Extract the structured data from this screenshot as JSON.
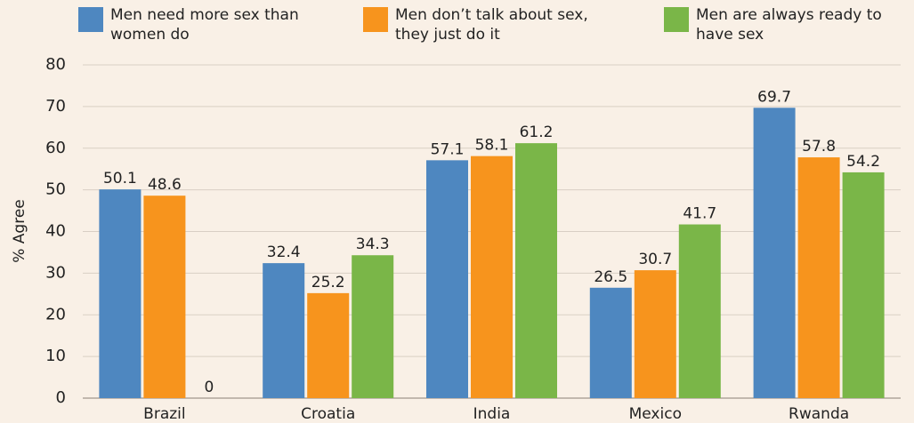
{
  "chart_data": {
    "type": "bar",
    "categories": [
      "Brazil",
      "Croatia",
      "India",
      "Mexico",
      "Rwanda"
    ],
    "series": [
      {
        "name": "Men need more sex than women do",
        "color": "#4e87c0",
        "values": [
          50.1,
          32.4,
          57.1,
          26.5,
          69.7
        ]
      },
      {
        "name": "Men don’t talk about sex, they just do it",
        "color": "#f7941d",
        "values": [
          48.6,
          25.2,
          58.1,
          30.7,
          57.8
        ]
      },
      {
        "name": "Men are always ready to have sex",
        "color": "#7ab648",
        "values": [
          0,
          34.3,
          61.2,
          41.7,
          54.2
        ]
      }
    ],
    "ylabel": "% Agree",
    "ylim": [
      0,
      80
    ],
    "yticks": [
      0,
      10,
      20,
      30,
      40,
      50,
      60,
      70,
      80
    ],
    "grid": true,
    "legend": "top"
  }
}
